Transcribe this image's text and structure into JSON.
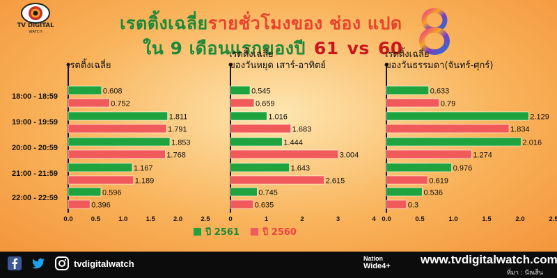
{
  "header": {
    "title_line1_a": "เรตติ้งเฉลี่ย",
    "title_line1_b": "รายชั่วโมงของ ช่อง แปด",
    "title_line2_a": "ใน 9 เดือนแรกของปี",
    "year_a": "61",
    "vs": "vs",
    "year_b": "60"
  },
  "logo": {
    "text1": "TV DIGITAL",
    "text2": "WATCH"
  },
  "channel_logo": {
    "name": "channel-8-logo"
  },
  "colors": {
    "green": "#1ea33e",
    "red": "#f15a5a"
  },
  "chart_data": [
    {
      "type": "bar",
      "orientation": "horizontal",
      "title": "เรตติ้งเฉลี่ย",
      "categories": [
        "18:00 - 18:59",
        "19:00 - 19:59",
        "20:00 - 20:59",
        "21:00 - 21:59",
        "22:00 - 22:59"
      ],
      "series": [
        {
          "name": "ปี 2561",
          "values": [
            0.608,
            1.811,
            1.853,
            1.167,
            0.596
          ]
        },
        {
          "name": "ปี 2560",
          "values": [
            0.752,
            1.791,
            1.768,
            1.189,
            0.396
          ]
        }
      ],
      "xlim": [
        0,
        2.5
      ],
      "xticks": [
        "0.0",
        "0.5",
        "1.0",
        "1.5",
        "2.0",
        "2.5"
      ]
    },
    {
      "type": "bar",
      "orientation": "horizontal",
      "title": "เรตติ้งเฉลี่ย ของวันหยุด เสาร์-อาทิตย์",
      "title_lines": [
        "เรตติ้งเฉลี่ย",
        "ของวันหยุด เสาร์-อาทิตย์"
      ],
      "categories": [
        "18:00 - 18:59",
        "19:00 - 19:59",
        "20:00 - 20:59",
        "21:00 - 21:59",
        "22:00 - 22:59"
      ],
      "series": [
        {
          "name": "ปี 2561",
          "values": [
            0.545,
            1.016,
            1.444,
            1.643,
            0.745
          ]
        },
        {
          "name": "ปี 2560",
          "values": [
            0.659,
            1.683,
            3.004,
            2.615,
            0.635
          ]
        }
      ],
      "xlim": [
        0,
        4
      ],
      "xticks": [
        "0",
        "1",
        "2",
        "3",
        "4"
      ]
    },
    {
      "type": "bar",
      "orientation": "horizontal",
      "title": "เรตติ้งเฉลี่ย ของวันธรรมดา(จันทร์-ศุกร์)",
      "title_lines": [
        "เรตติ้งเฉลี่ย",
        "ของวันธรรมดา(จันทร์-ศุกร์)"
      ],
      "categories": [
        "18:00 - 18:59",
        "19:00 - 19:59",
        "20:00 - 20:59",
        "21:00 - 21:59",
        "22:00 - 22:59"
      ],
      "series": [
        {
          "name": "ปี 2561",
          "values": [
            0.633,
            2.129,
            2.016,
            0.976,
            0.536
          ]
        },
        {
          "name": "ปี 2560",
          "values": [
            0.79,
            1.834,
            1.274,
            0.619,
            0.3
          ]
        }
      ],
      "xlim": [
        0,
        2.5
      ],
      "xticks": [
        "0.0",
        "0.5",
        "1.0",
        "1.5",
        "2.0",
        "2.5"
      ]
    }
  ],
  "legend": [
    {
      "label": "ปี 2561",
      "color": "#1ea33e"
    },
    {
      "label": "ปี 2560",
      "color": "#f15a5a"
    }
  ],
  "footer": {
    "social_handle": "tvdigitalwatch",
    "badge_line1": "Nation",
    "badge_line2": "Wide4+",
    "website": "www.tvdigitalwatch.com",
    "source": "ที่มา : นีลเส็น",
    "icons": [
      "facebook-icon",
      "twitter-icon",
      "instagram-icon"
    ]
  }
}
